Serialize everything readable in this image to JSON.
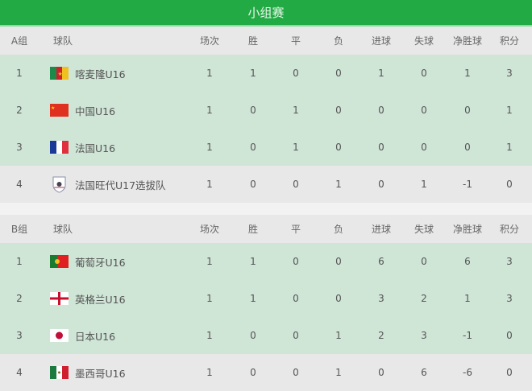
{
  "title": "小组赛",
  "columns": [
    "球队",
    "场次",
    "胜",
    "平",
    "负",
    "进球",
    "失球",
    "净胜球",
    "积分"
  ],
  "groups": [
    {
      "label": "A组",
      "rows": [
        {
          "rank": "1",
          "team": "喀麦隆U16",
          "flag": "cameroon-flag-icon",
          "qualified": true,
          "stats": [
            "1",
            "1",
            "0",
            "0",
            "1",
            "0",
            "1",
            "3"
          ]
        },
        {
          "rank": "2",
          "team": "中国U16",
          "flag": "china-flag-icon",
          "qualified": true,
          "stats": [
            "1",
            "0",
            "1",
            "0",
            "0",
            "0",
            "0",
            "1"
          ]
        },
        {
          "rank": "3",
          "team": "法国U16",
          "flag": "france-flag-icon",
          "qualified": true,
          "stats": [
            "1",
            "0",
            "1",
            "0",
            "0",
            "0",
            "0",
            "1"
          ]
        },
        {
          "rank": "4",
          "team": "法国旺代U17选拔队",
          "flag": "club-crest-icon",
          "qualified": false,
          "stats": [
            "1",
            "0",
            "0",
            "1",
            "0",
            "1",
            "-1",
            "0"
          ]
        }
      ]
    },
    {
      "label": "B组",
      "rows": [
        {
          "rank": "1",
          "team": "葡萄牙U16",
          "flag": "portugal-flag-icon",
          "qualified": true,
          "stats": [
            "1",
            "1",
            "0",
            "0",
            "6",
            "0",
            "6",
            "3"
          ]
        },
        {
          "rank": "2",
          "team": "英格兰U16",
          "flag": "england-flag-icon",
          "qualified": true,
          "stats": [
            "1",
            "1",
            "0",
            "0",
            "3",
            "2",
            "1",
            "3"
          ]
        },
        {
          "rank": "3",
          "team": "日本U16",
          "flag": "japan-flag-icon",
          "qualified": true,
          "stats": [
            "1",
            "0",
            "0",
            "1",
            "2",
            "3",
            "-1",
            "0"
          ]
        },
        {
          "rank": "4",
          "team": "墨西哥U16",
          "flag": "mexico-flag-icon",
          "qualified": false,
          "stats": [
            "1",
            "0",
            "0",
            "1",
            "0",
            "6",
            "-6",
            "0"
          ]
        }
      ]
    }
  ],
  "colors": {
    "header_green": "#22aa44",
    "qualified_row": "#cfe5d6",
    "other_row": "#e8e8e8"
  }
}
